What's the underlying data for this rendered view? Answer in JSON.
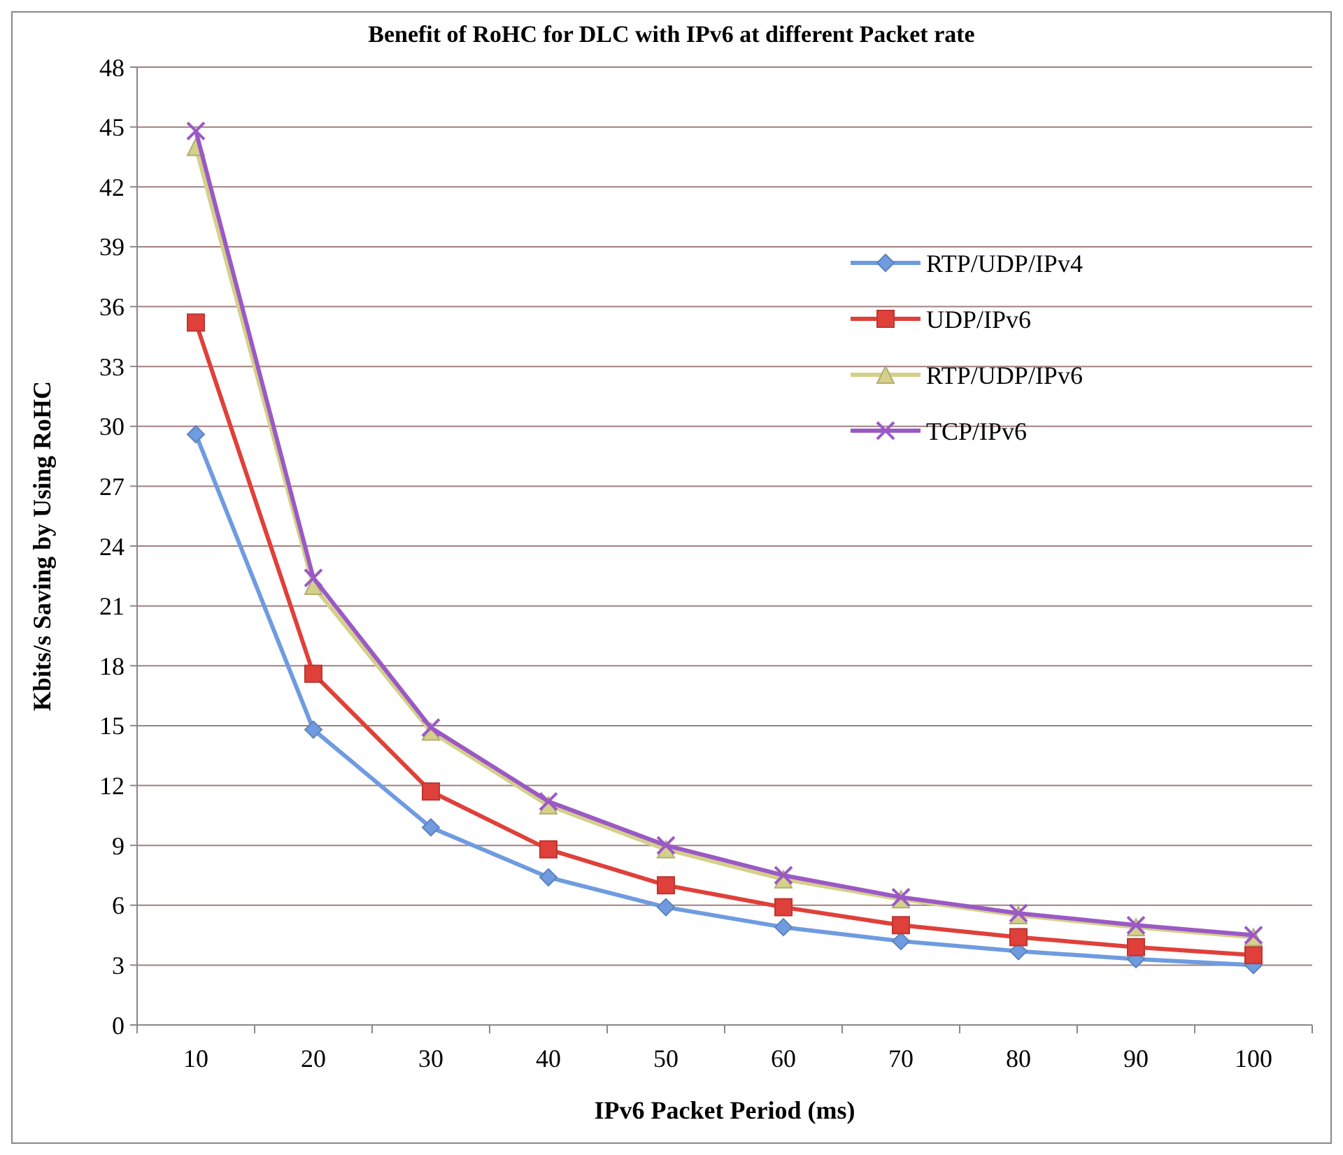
{
  "chart_data": {
    "type": "line",
    "title": "Benefit of RoHC for DLC with  IPv6 at different Packet rate",
    "xlabel": "IPv6 Packet Period (ms)",
    "ylabel": "Kbits/s Saving by Using RoHC",
    "categories": [
      "10",
      "20",
      "30",
      "40",
      "50",
      "60",
      "70",
      "80",
      "90",
      "100"
    ],
    "series": [
      {
        "name": "RTP/UDP/IPv4",
        "color": "#6f9be0",
        "marker": "diamond",
        "values": [
          29.6,
          14.8,
          9.9,
          7.4,
          5.9,
          4.9,
          4.2,
          3.7,
          3.3,
          3.0
        ]
      },
      {
        "name": "UDP/IPv6",
        "color": "#e0403a",
        "marker": "square",
        "values": [
          35.2,
          17.6,
          11.7,
          8.8,
          7.0,
          5.9,
          5.0,
          4.4,
          3.9,
          3.5
        ]
      },
      {
        "name": "RTP/UDP/IPv6",
        "color": "#d4d08a",
        "marker": "triangle",
        "values": [
          44.0,
          22.0,
          14.7,
          11.0,
          8.8,
          7.3,
          6.3,
          5.5,
          4.9,
          4.4
        ]
      },
      {
        "name": "TCP/IPv6",
        "color": "#9b59c5",
        "marker": "cross",
        "values": [
          44.8,
          22.4,
          14.9,
          11.2,
          9.0,
          7.5,
          6.4,
          5.6,
          5.0,
          4.5
        ]
      }
    ],
    "ylim": [
      0,
      48
    ],
    "yticks": [
      0,
      3,
      6,
      9,
      12,
      15,
      18,
      21,
      24,
      27,
      30,
      33,
      36,
      39,
      42,
      45,
      48
    ],
    "grid": "y",
    "legend": "right",
    "line_style": "solid"
  }
}
